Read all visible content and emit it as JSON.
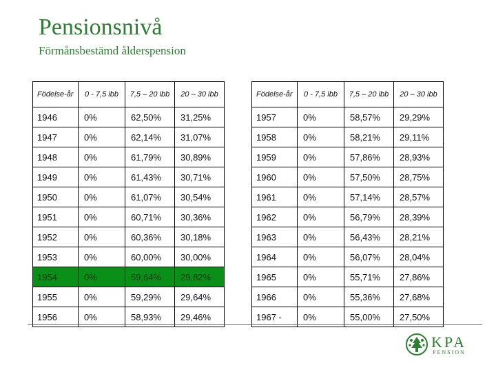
{
  "title": "Pensionsnivå",
  "subtitle": "Förmånsbestämd ålderspension",
  "headers": [
    "Födelse-år",
    "0 - 7,5 ibb",
    "7,5 – 20 ibb",
    "20 – 30 ibb"
  ],
  "highlight_color": "#0a8f18",
  "left_table": [
    [
      "1946",
      "0%",
      "62,50%",
      "31,25%"
    ],
    [
      "1947",
      "0%",
      "62,14%",
      "31,07%"
    ],
    [
      "1948",
      "0%",
      "61,79%",
      "30,89%"
    ],
    [
      "1949",
      "0%",
      "61,43%",
      "30,71%"
    ],
    [
      "1950",
      "0%",
      "61,07%",
      "30,54%"
    ],
    [
      "1951",
      "0%",
      "60,71%",
      "30,36%"
    ],
    [
      "1952",
      "0%",
      "60,36%",
      "30,18%"
    ],
    [
      "1953",
      "0%",
      "60,00%",
      "30,00%"
    ],
    [
      "1954",
      "0%",
      "59,64%",
      "29,82%"
    ],
    [
      "1955",
      "0%",
      "59,29%",
      "29,64%"
    ],
    [
      "1956",
      "0%",
      "58,93%",
      "29,46%"
    ]
  ],
  "highlighted_row": "1954",
  "right_table": [
    [
      "1957",
      "0%",
      "58,57%",
      "29,29%"
    ],
    [
      "1958",
      "0%",
      "58,21%",
      "29,11%"
    ],
    [
      "1959",
      "0%",
      "57,86%",
      "28,93%"
    ],
    [
      "1960",
      "0%",
      "57,50%",
      "28,75%"
    ],
    [
      "1961",
      "0%",
      "57,14%",
      "28,57%"
    ],
    [
      "1962",
      "0%",
      "56,79%",
      "28,39%"
    ],
    [
      "1963",
      "0%",
      "56,43%",
      "28,21%"
    ],
    [
      "1964",
      "0%",
      "56,07%",
      "28,04%"
    ],
    [
      "1965",
      "0%",
      "55,71%",
      "27,86%"
    ],
    [
      "1966",
      "0%",
      "55,36%",
      "27,68%"
    ],
    [
      "1967 -",
      "0%",
      "55,00%",
      "27,50%"
    ]
  ],
  "logo": {
    "name": "KPA",
    "sub": "PENSION"
  }
}
